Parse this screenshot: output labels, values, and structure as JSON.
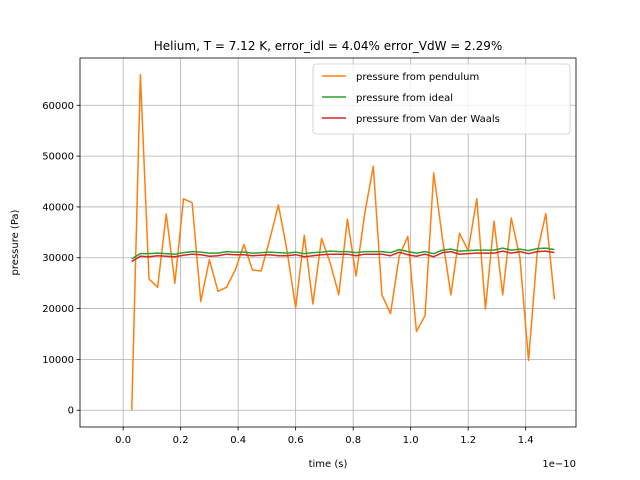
{
  "chart_data": {
    "type": "line",
    "title": "Helium, T = 7.12 K, error_idl = 4.04% error_VdW = 2.29%",
    "xlabel": "time (s)",
    "ylabel": "pressure (Pa)",
    "x_offset_label": "1e−10",
    "xlim": [
      -0.15,
      1.575
    ],
    "ylim": [
      -3300,
      69300
    ],
    "x_ticks": [
      0.0,
      0.2,
      0.4,
      0.6,
      0.8,
      1.0,
      1.2,
      1.4
    ],
    "x_tick_labels": [
      "0.0",
      "0.2",
      "0.4",
      "0.6",
      "0.8",
      "1.0",
      "1.2",
      "1.4"
    ],
    "y_ticks": [
      0,
      10000,
      20000,
      30000,
      40000,
      50000,
      60000
    ],
    "y_tick_labels": [
      "0",
      "10000",
      "20000",
      "30000",
      "40000",
      "50000",
      "60000"
    ],
    "grid": true,
    "legend_position": "top-right",
    "x": [
      0.03,
      0.06,
      0.09,
      0.12,
      0.15,
      0.18,
      0.21,
      0.24,
      0.27,
      0.3,
      0.33,
      0.36,
      0.39,
      0.42,
      0.45,
      0.48,
      0.51,
      0.54,
      0.57,
      0.6,
      0.63,
      0.66,
      0.69,
      0.72,
      0.75,
      0.78,
      0.81,
      0.84,
      0.87,
      0.9,
      0.93,
      0.96,
      0.99,
      1.02,
      1.05,
      1.08,
      1.11,
      1.14,
      1.17,
      1.2,
      1.23,
      1.26,
      1.29,
      1.32,
      1.35,
      1.38,
      1.41,
      1.44,
      1.47,
      1.5
    ],
    "series": [
      {
        "name": "pressure from pendulum",
        "color": "#ff7f0e",
        "values": [
          0,
          66000,
          25800,
          24200,
          38600,
          25000,
          41600,
          40800,
          21400,
          29600,
          23400,
          24200,
          27600,
          32600,
          27600,
          27400,
          33600,
          40400,
          31400,
          20200,
          34400,
          20900,
          33800,
          29000,
          22700,
          37600,
          26400,
          38600,
          48000,
          22700,
          19000,
          30300,
          34200,
          15500,
          18600,
          46700,
          34000,
          22700,
          34800,
          31400,
          41600,
          19900,
          37200,
          22700,
          37800,
          30000,
          9800,
          31000,
          38700,
          21800
        ]
      },
      {
        "name": "pressure from ideal",
        "color": "#2ca02c",
        "values": [
          29800,
          30800,
          30800,
          30900,
          30800,
          30700,
          31000,
          31200,
          31100,
          30900,
          30900,
          31200,
          31100,
          31100,
          30900,
          31000,
          31100,
          31000,
          30900,
          31100,
          30800,
          31000,
          31100,
          31300,
          31200,
          31200,
          31000,
          31200,
          31200,
          31200,
          31000,
          31600,
          31200,
          30900,
          31200,
          30800,
          31500,
          31700,
          31300,
          31400,
          31500,
          31500,
          31500,
          31900,
          31500,
          31700,
          31400,
          31800,
          31900,
          31600
        ]
      },
      {
        "name": "pressure from Van der Waals",
        "color": "#d62728",
        "values": [
          29300,
          30300,
          30200,
          30400,
          30300,
          30200,
          30500,
          30700,
          30600,
          30300,
          30400,
          30700,
          30600,
          30600,
          30400,
          30500,
          30600,
          30400,
          30400,
          30600,
          30200,
          30400,
          30600,
          30700,
          30700,
          30700,
          30400,
          30700,
          30700,
          30700,
          30400,
          31100,
          30600,
          30300,
          30700,
          30200,
          31000,
          31200,
          30700,
          30800,
          30900,
          30900,
          30900,
          31300,
          30900,
          31200,
          30800,
          31200,
          31300,
          31000
        ]
      }
    ]
  }
}
